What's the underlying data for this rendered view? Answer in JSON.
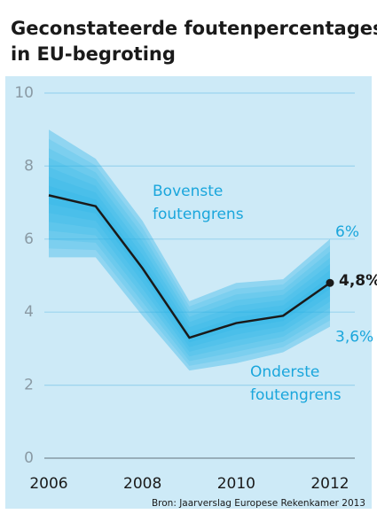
{
  "chart_data": {
    "type": "band-line",
    "title_lines": [
      "Geconstateerde foutenpercentages",
      "in EU-begroting"
    ],
    "source": "Bron: Jaarverslag Europese Rekenkamer 2013",
    "x": [
      2006,
      2007,
      2008,
      2009,
      2010,
      2011,
      2012
    ],
    "xlim": [
      2006,
      2012
    ],
    "xticks": [
      2006,
      2008,
      2010,
      2012
    ],
    "ylim": [
      0,
      10
    ],
    "yticks": [
      0,
      2,
      4,
      6,
      8,
      10
    ],
    "grid": true,
    "series": [
      {
        "role": "line",
        "color": "#1a1a1a",
        "values": [
          7.2,
          6.9,
          5.2,
          3.3,
          3.7,
          3.9,
          4.8
        ],
        "value_labels": [
          null,
          null,
          null,
          null,
          null,
          null,
          "4,8%"
        ]
      },
      {
        "role": "upper",
        "color": "#1fb0e6",
        "values": [
          9.0,
          8.2,
          6.5,
          4.3,
          4.8,
          4.9,
          6.0
        ],
        "value_labels": [
          null,
          null,
          null,
          null,
          null,
          null,
          "6%"
        ]
      },
      {
        "role": "lower",
        "color": "#1fb0e6",
        "values": [
          5.5,
          5.5,
          3.9,
          2.4,
          2.6,
          2.9,
          3.6
        ],
        "value_labels": [
          null,
          null,
          null,
          null,
          null,
          null,
          "3,6%"
        ]
      }
    ],
    "annotations": [
      {
        "lines": [
          "Bovenste",
          "foutengrens"
        ]
      },
      {
        "lines": [
          "Onderste",
          "foutengrens"
        ]
      }
    ]
  }
}
